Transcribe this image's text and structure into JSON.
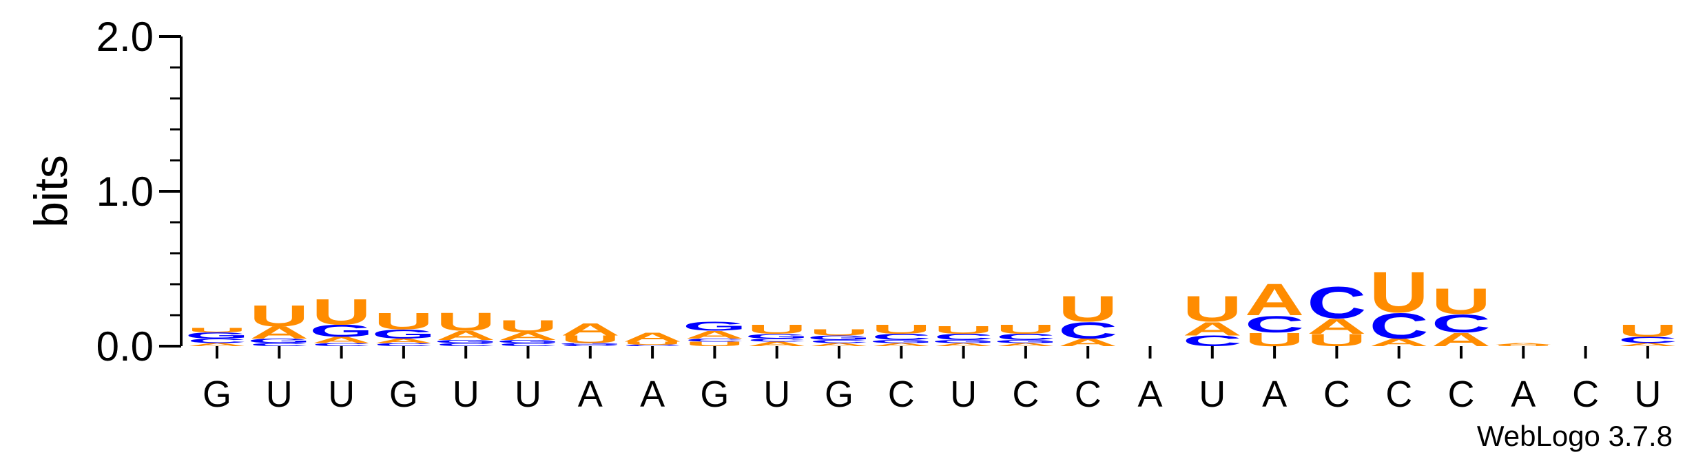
{
  "chart_data": {
    "type": "sequence-logo",
    "ylabel": "bits",
    "ylim": [
      0,
      2
    ],
    "yticks": [
      "0.0",
      "1.0",
      "2.0"
    ],
    "footer": "WebLogo 3.7.8",
    "colors": {
      "U": "#ff8c00",
      "A": "#ff8c00",
      "C": "#0000ff",
      "G": "#0000ff"
    },
    "positions": [
      {
        "label": "G",
        "stack": [
          {
            "letter": "A",
            "bits": 0.02
          },
          {
            "letter": "C",
            "bits": 0.03
          },
          {
            "letter": "G",
            "bits": 0.04
          },
          {
            "letter": "U",
            "bits": 0.03
          }
        ]
      },
      {
        "label": "U",
        "stack": [
          {
            "letter": "C",
            "bits": 0.02
          },
          {
            "letter": "G",
            "bits": 0.03
          },
          {
            "letter": "A",
            "bits": 0.08
          },
          {
            "letter": "U",
            "bits": 0.14
          }
        ]
      },
      {
        "label": "U",
        "stack": [
          {
            "letter": "C",
            "bits": 0.02
          },
          {
            "letter": "A",
            "bits": 0.04
          },
          {
            "letter": "G",
            "bits": 0.08
          },
          {
            "letter": "U",
            "bits": 0.17
          }
        ]
      },
      {
        "label": "G",
        "stack": [
          {
            "letter": "C",
            "bits": 0.02
          },
          {
            "letter": "A",
            "bits": 0.03
          },
          {
            "letter": "G",
            "bits": 0.06
          },
          {
            "letter": "U",
            "bits": 0.11
          }
        ]
      },
      {
        "label": "U",
        "stack": [
          {
            "letter": "C",
            "bits": 0.02
          },
          {
            "letter": "G",
            "bits": 0.02
          },
          {
            "letter": "A",
            "bits": 0.06
          },
          {
            "letter": "U",
            "bits": 0.12
          }
        ]
      },
      {
        "label": "U",
        "stack": [
          {
            "letter": "C",
            "bits": 0.02
          },
          {
            "letter": "G",
            "bits": 0.02
          },
          {
            "letter": "A",
            "bits": 0.05
          },
          {
            "letter": "U",
            "bits": 0.08
          }
        ]
      },
      {
        "label": "A",
        "stack": [
          {
            "letter": "C",
            "bits": 0.01
          },
          {
            "letter": "G",
            "bits": 0.01
          },
          {
            "letter": "U",
            "bits": 0.05
          },
          {
            "letter": "A",
            "bits": 0.08
          }
        ]
      },
      {
        "label": "A",
        "stack": [
          {
            "letter": "C",
            "bits": 0.01
          },
          {
            "letter": "U",
            "bits": 0.02
          },
          {
            "letter": "A",
            "bits": 0.06
          }
        ]
      },
      {
        "label": "G",
        "stack": [
          {
            "letter": "U",
            "bits": 0.03
          },
          {
            "letter": "C",
            "bits": 0.02
          },
          {
            "letter": "A",
            "bits": 0.05
          },
          {
            "letter": "G",
            "bits": 0.06
          }
        ]
      },
      {
        "label": "U",
        "stack": [
          {
            "letter": "A",
            "bits": 0.03
          },
          {
            "letter": "C",
            "bits": 0.02
          },
          {
            "letter": "G",
            "bits": 0.03
          },
          {
            "letter": "U",
            "bits": 0.06
          }
        ]
      },
      {
        "label": "G",
        "stack": [
          {
            "letter": "A",
            "bits": 0.02
          },
          {
            "letter": "C",
            "bits": 0.02
          },
          {
            "letter": "G",
            "bits": 0.03
          },
          {
            "letter": "U",
            "bits": 0.04
          }
        ]
      },
      {
        "label": "C",
        "stack": [
          {
            "letter": "A",
            "bits": 0.02
          },
          {
            "letter": "G",
            "bits": 0.02
          },
          {
            "letter": "C",
            "bits": 0.04
          },
          {
            "letter": "U",
            "bits": 0.06
          }
        ]
      },
      {
        "label": "U",
        "stack": [
          {
            "letter": "A",
            "bits": 0.02
          },
          {
            "letter": "G",
            "bits": 0.02
          },
          {
            "letter": "C",
            "bits": 0.04
          },
          {
            "letter": "U",
            "bits": 0.05
          }
        ]
      },
      {
        "label": "C",
        "stack": [
          {
            "letter": "A",
            "bits": 0.02
          },
          {
            "letter": "G",
            "bits": 0.02
          },
          {
            "letter": "C",
            "bits": 0.04
          },
          {
            "letter": "U",
            "bits": 0.06
          }
        ]
      },
      {
        "label": "C",
        "stack": [
          {
            "letter": "A",
            "bits": 0.05
          },
          {
            "letter": "C",
            "bits": 0.11
          },
          {
            "letter": "U",
            "bits": 0.17
          }
        ]
      },
      {
        "label": "A",
        "stack": []
      },
      {
        "label": "U",
        "stack": [
          {
            "letter": "C",
            "bits": 0.07
          },
          {
            "letter": "A",
            "bits": 0.09
          },
          {
            "letter": "U",
            "bits": 0.17
          }
        ]
      },
      {
        "label": "A",
        "stack": [
          {
            "letter": "U",
            "bits": 0.09
          },
          {
            "letter": "C",
            "bits": 0.11
          },
          {
            "letter": "A",
            "bits": 0.21
          }
        ]
      },
      {
        "label": "C",
        "stack": [
          {
            "letter": "U",
            "bits": 0.08
          },
          {
            "letter": "A",
            "bits": 0.1
          },
          {
            "letter": "C",
            "bits": 0.21
          }
        ]
      },
      {
        "label": "C",
        "stack": [
          {
            "letter": "A",
            "bits": 0.05
          },
          {
            "letter": "C",
            "bits": 0.17
          },
          {
            "letter": "U",
            "bits": 0.27
          }
        ]
      },
      {
        "label": "C",
        "stack": [
          {
            "letter": "A",
            "bits": 0.09
          },
          {
            "letter": "C",
            "bits": 0.12
          },
          {
            "letter": "U",
            "bits": 0.17
          }
        ]
      },
      {
        "label": "A",
        "stack": [
          {
            "letter": "U",
            "bits": 0.01
          },
          {
            "letter": "A",
            "bits": 0.01
          }
        ]
      },
      {
        "label": "C",
        "stack": []
      },
      {
        "label": "U",
        "stack": [
          {
            "letter": "A",
            "bits": 0.02
          },
          {
            "letter": "C",
            "bits": 0.04
          },
          {
            "letter": "U",
            "bits": 0.08
          }
        ]
      }
    ]
  }
}
